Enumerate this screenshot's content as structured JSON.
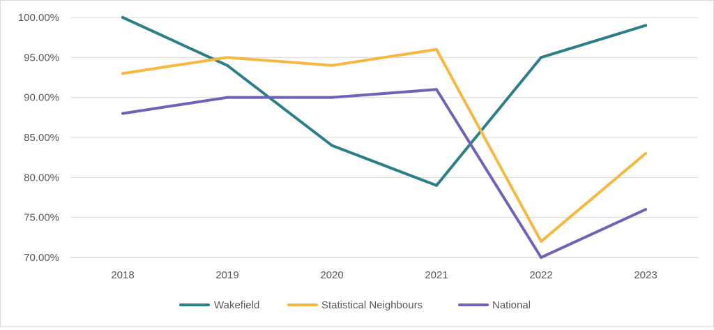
{
  "chart_data": {
    "type": "line",
    "categories": [
      "2018",
      "2019",
      "2020",
      "2021",
      "2022",
      "2023"
    ],
    "series": [
      {
        "name": "Wakefield",
        "color": "#2b7f89",
        "values": [
          100,
          94,
          84,
          79,
          95,
          99
        ]
      },
      {
        "name": "Statistical Neighbours",
        "color": "#f5b942",
        "values": [
          93,
          95,
          94,
          96,
          72,
          83
        ]
      },
      {
        "name": "National",
        "color": "#6f63b8",
        "values": [
          88,
          90,
          90,
          91,
          70,
          76
        ]
      }
    ],
    "yTicks": [
      "70.00%",
      "75.00%",
      "80.00%",
      "85.00%",
      "90.00%",
      "95.00%",
      "100.00%"
    ],
    "ylim": [
      70,
      100
    ],
    "grid": true,
    "legend_position": "bottom"
  }
}
